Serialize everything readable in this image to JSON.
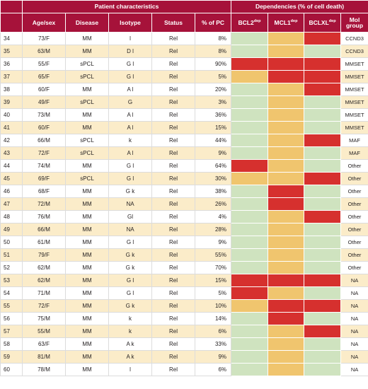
{
  "headers": {
    "group1": "Patient characteristics",
    "group2": "Dependencies (% of cell death)",
    "age_sex": "Age/sex",
    "disease": "Disease",
    "isotype": "Isotype",
    "status": "Status",
    "pc": "% of PC",
    "bcl2": "BCL2",
    "mcl1": "MCL1",
    "bclxl": "BCLXL",
    "dep_sup": "dep",
    "mol1": "Mol",
    "mol2": "group"
  },
  "legend_colors": {
    "low": "#cfe3bf",
    "mid": "#f0c56e",
    "high": "#d6302e",
    "header": "#a6123a",
    "band": "#fbecc9"
  },
  "rows": [
    {
      "id": "34",
      "age": "73/F",
      "disease": "MM",
      "isotype": "l",
      "status": "Rel",
      "pc": "8%",
      "bcl2": "low",
      "mcl1": "mid",
      "bclxl": "high",
      "mol": "CCND3"
    },
    {
      "id": "35",
      "age": "63/M",
      "disease": "MM",
      "isotype": "D l",
      "status": "Rel",
      "pc": "8%",
      "bcl2": "low",
      "mcl1": "mid",
      "bclxl": "low",
      "mol": "CCND3"
    },
    {
      "id": "36",
      "age": "55/F",
      "disease": "sPCL",
      "isotype": "G l",
      "status": "Rel",
      "pc": "90%",
      "bcl2": "high",
      "mcl1": "high",
      "bclxl": "high",
      "mol": "MMSET"
    },
    {
      "id": "37",
      "age": "65/F",
      "disease": "sPCL",
      "isotype": "G l",
      "status": "Rel",
      "pc": "5%",
      "bcl2": "mid",
      "mcl1": "high",
      "bclxl": "high",
      "mol": "MMSET"
    },
    {
      "id": "38",
      "age": "60/F",
      "disease": "MM",
      "isotype": "A l",
      "status": "Rel",
      "pc": "20%",
      "bcl2": "low",
      "mcl1": "mid",
      "bclxl": "high",
      "mol": "MMSET"
    },
    {
      "id": "39",
      "age": "49/F",
      "disease": "sPCL",
      "isotype": "G",
      "status": "Rel",
      "pc": "3%",
      "bcl2": "low",
      "mcl1": "mid",
      "bclxl": "low",
      "mol": "MMSET"
    },
    {
      "id": "40",
      "age": "73/M",
      "disease": "MM",
      "isotype": "A l",
      "status": "Rel",
      "pc": "36%",
      "bcl2": "low",
      "mcl1": "mid",
      "bclxl": "low",
      "mol": "MMSET"
    },
    {
      "id": "41",
      "age": "60/F",
      "disease": "MM",
      "isotype": "A l",
      "status": "Rel",
      "pc": "15%",
      "bcl2": "low",
      "mcl1": "mid",
      "bclxl": "low",
      "mol": "MMSET"
    },
    {
      "id": "42",
      "age": "66/M",
      "disease": "sPCL",
      "isotype": "k",
      "status": "Rel",
      "pc": "44%",
      "bcl2": "low",
      "mcl1": "mid",
      "bclxl": "high",
      "mol": "MAF"
    },
    {
      "id": "43",
      "age": "72/F",
      "disease": "sPCL",
      "isotype": "A l",
      "status": "Rel",
      "pc": "9%",
      "bcl2": "low",
      "mcl1": "mid",
      "bclxl": "low",
      "mol": "MAF"
    },
    {
      "id": "44",
      "age": "74/M",
      "disease": "MM",
      "isotype": "G l",
      "status": "Rel",
      "pc": "64%",
      "bcl2": "high",
      "mcl1": "mid",
      "bclxl": "low",
      "mol": "Other"
    },
    {
      "id": "45",
      "age": "69/F",
      "disease": "sPCL",
      "isotype": "G l",
      "status": "Rel",
      "pc": "30%",
      "bcl2": "mid",
      "mcl1": "mid",
      "bclxl": "high",
      "mol": "Other"
    },
    {
      "id": "46",
      "age": "68/F",
      "disease": "MM",
      "isotype": "G k",
      "status": "Rel",
      "pc": "38%",
      "bcl2": "low",
      "mcl1": "high",
      "bclxl": "low",
      "mol": "Other"
    },
    {
      "id": "47",
      "age": "72/M",
      "disease": "MM",
      "isotype": "NA",
      "status": "Rel",
      "pc": "26%",
      "bcl2": "low",
      "mcl1": "high",
      "bclxl": "low",
      "mol": "Other"
    },
    {
      "id": "48",
      "age": "76/M",
      "disease": "MM",
      "isotype": "Gl",
      "status": "Rel",
      "pc": "4%",
      "bcl2": "low",
      "mcl1": "mid",
      "bclxl": "high",
      "mol": "Other"
    },
    {
      "id": "49",
      "age": "66/M",
      "disease": "MM",
      "isotype": "NA",
      "status": "Rel",
      "pc": "28%",
      "bcl2": "low",
      "mcl1": "mid",
      "bclxl": "low",
      "mol": "Other"
    },
    {
      "id": "50",
      "age": "61/M",
      "disease": "MM",
      "isotype": "G l",
      "status": "Rel",
      "pc": "9%",
      "bcl2": "low",
      "mcl1": "mid",
      "bclxl": "low",
      "mol": "Other"
    },
    {
      "id": "51",
      "age": "79/F",
      "disease": "MM",
      "isotype": "G k",
      "status": "Rel",
      "pc": "55%",
      "bcl2": "low",
      "mcl1": "mid",
      "bclxl": "low",
      "mol": "Other"
    },
    {
      "id": "52",
      "age": "62/M",
      "disease": "MM",
      "isotype": "G k",
      "status": "Rel",
      "pc": "70%",
      "bcl2": "low",
      "mcl1": "mid",
      "bclxl": "low",
      "mol": "Other"
    },
    {
      "id": "53",
      "age": "62/M",
      "disease": "MM",
      "isotype": "G l",
      "status": "Rel",
      "pc": "15%",
      "bcl2": "high",
      "mcl1": "high",
      "bclxl": "high",
      "mol": "NA"
    },
    {
      "id": "54",
      "age": "71/M",
      "disease": "MM",
      "isotype": "G l",
      "status": "Rel",
      "pc": "5%",
      "bcl2": "high",
      "mcl1": "mid",
      "bclxl": "low",
      "mol": "NA"
    },
    {
      "id": "55",
      "age": "72/F",
      "disease": "MM",
      "isotype": "G k",
      "status": "Rel",
      "pc": "10%",
      "bcl2": "mid",
      "mcl1": "high",
      "bclxl": "high",
      "mol": "NA"
    },
    {
      "id": "56",
      "age": "75/M",
      "disease": "MM",
      "isotype": "k",
      "status": "Rel",
      "pc": "14%",
      "bcl2": "low",
      "mcl1": "high",
      "bclxl": "low",
      "mol": "NA"
    },
    {
      "id": "57",
      "age": "55/M",
      "disease": "MM",
      "isotype": "k",
      "status": "Rel",
      "pc": "6%",
      "bcl2": "low",
      "mcl1": "mid",
      "bclxl": "high",
      "mol": "NA"
    },
    {
      "id": "58",
      "age": "63/F",
      "disease": "MM",
      "isotype": "A k",
      "status": "Rel",
      "pc": "33%",
      "bcl2": "low",
      "mcl1": "mid",
      "bclxl": "low",
      "mol": "NA"
    },
    {
      "id": "59",
      "age": "81/M",
      "disease": "MM",
      "isotype": "A k",
      "status": "Rel",
      "pc": "9%",
      "bcl2": "low",
      "mcl1": "mid",
      "bclxl": "low",
      "mol": "NA"
    },
    {
      "id": "60",
      "age": "78/M",
      "disease": "MM",
      "isotype": "l",
      "status": "Rel",
      "pc": "6%",
      "bcl2": "low",
      "mcl1": "mid",
      "bclxl": "low",
      "mol": "NA"
    }
  ]
}
